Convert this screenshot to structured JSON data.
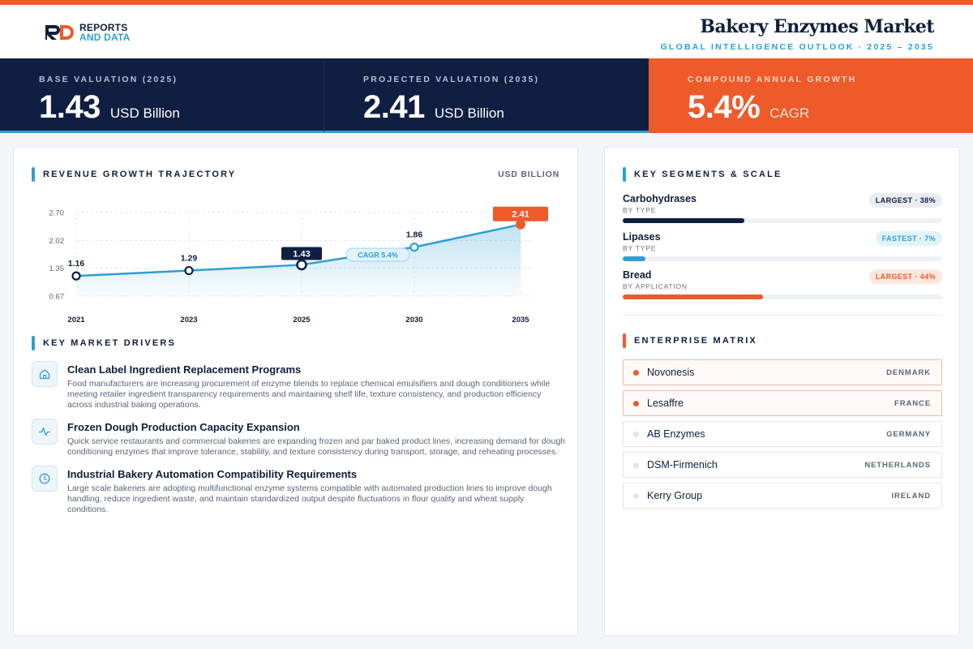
{
  "brand": {
    "line1": "REPORTS",
    "line2": "AND DATA"
  },
  "header": {
    "title": "Bakery Enzymes Market",
    "subtitle": "GLOBAL INTELLIGENCE OUTLOOK  ·  2025 – 2035"
  },
  "kpis": [
    {
      "label": "BASE VALUATION (2025)",
      "value": "1.43",
      "unit": "USD Billion"
    },
    {
      "label": "PROJECTED VALUATION (2035)",
      "value": "2.41",
      "unit": "USD Billion"
    },
    {
      "label": "COMPOUND ANNUAL GROWTH",
      "value": "5.4%",
      "unit": "CAGR"
    }
  ],
  "colors": {
    "navy": "#0f1f42",
    "blue": "#2d9fd6",
    "orange": "#ef5a2a"
  },
  "chart_section": {
    "title": "REVENUE GROWTH TRAJECTORY",
    "unit": "USD BILLION",
    "cagr_label": "CAGR 5.4%"
  },
  "chart_data": {
    "type": "area",
    "x": [
      "2021",
      "2023",
      "2025",
      "2030",
      "2035"
    ],
    "values": [
      1.16,
      1.29,
      1.43,
      1.86,
      2.41
    ],
    "value_labels": [
      "1.16",
      "1.29",
      "1.43",
      "1.86",
      "2.41"
    ],
    "yticks": [
      "2.70",
      "2.02",
      "1.35",
      "0.67"
    ],
    "ytick_values": [
      2.7,
      2.02,
      1.35,
      0.67
    ],
    "ylim": [
      0.67,
      2.7
    ],
    "grid": true
  },
  "drivers_section": {
    "title": "KEY MARKET DRIVERS"
  },
  "drivers": [
    {
      "icon": "building-icon",
      "title": "Clean Label Ingredient Replacement Programs",
      "desc": "Food manufacturers are increasing procurement of enzyme blends to replace chemical emulsifiers and dough conditioners while meeting retailer ingredient transparency requirements and maintaining shelf life, texture consistency, and production efficiency across industrial baking operations."
    },
    {
      "icon": "pulse-icon",
      "title": "Frozen Dough Production Capacity Expansion",
      "desc": "Quick service restaurants and commercial bakeries are expanding frozen and par baked product lines, increasing demand for dough conditioning enzymes that improve tolerance, stability, and texture consistency during transport, storage, and reheating processes."
    },
    {
      "icon": "clock-icon",
      "title": "Industrial Bakery Automation Compatibility Requirements",
      "desc": "Large scale bakeries are adopting multifunctional enzyme systems compatible with automated production lines to improve dough handling, reduce ingredient waste, and maintain standardized output despite fluctuations in flour quality and wheat supply conditions."
    }
  ],
  "segments_section": {
    "title": "KEY SEGMENTS & SCALE"
  },
  "segments": [
    {
      "name": "Carbohydrases",
      "sub": "BY TYPE",
      "badge": "LARGEST · 38%",
      "share": 0.38,
      "color": "#0f1f42",
      "badge_style": "dark"
    },
    {
      "name": "Lipases",
      "sub": "BY TYPE",
      "badge": "FASTEST · 7%",
      "share": 0.07,
      "color": "#2d9fd6",
      "badge_style": "blue"
    },
    {
      "name": "Bread",
      "sub": "BY APPLICATION",
      "badge": "LARGEST · 44%",
      "share": 0.44,
      "color": "#ef5a2a",
      "badge_style": "orange"
    }
  ],
  "matrix_section": {
    "title": "ENTERPRISE MATRIX"
  },
  "companies": [
    {
      "name": "Novonesis",
      "country": "DENMARK",
      "highlight": true
    },
    {
      "name": "Lesaffre",
      "country": "FRANCE",
      "highlight": true
    },
    {
      "name": "AB Enzymes",
      "country": "GERMANY",
      "highlight": false
    },
    {
      "name": "DSM-Firmenich",
      "country": "NETHERLANDS",
      "highlight": false
    },
    {
      "name": "Kerry Group",
      "country": "IRELAND",
      "highlight": false
    }
  ]
}
